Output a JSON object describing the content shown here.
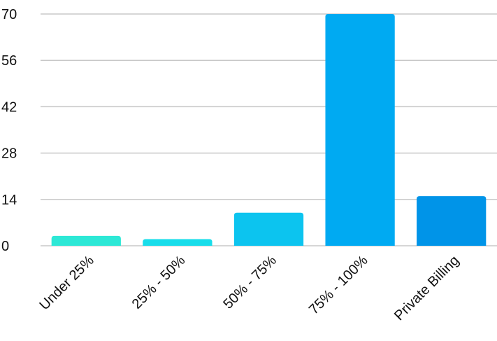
{
  "chart_data": {
    "type": "bar",
    "title": "",
    "xlabel": "",
    "ylabel": "",
    "categories": [
      "Under 25%",
      "25% - 50%",
      "50% - 75%",
      "75% - 100%",
      "Private Billing"
    ],
    "values": [
      3,
      2,
      10,
      70,
      15
    ],
    "colors": [
      "#2de8d6",
      "#18ddea",
      "#0cc4ef",
      "#00aaf2",
      "#0094e8"
    ],
    "ylim": [
      0,
      70
    ],
    "yticks": [
      {
        "value": 0,
        "label": "0"
      },
      {
        "value": 14,
        "label": "14"
      },
      {
        "value": 28,
        "label": "28"
      },
      {
        "value": 42,
        "label": "42"
      },
      {
        "value": 56,
        "label": "56"
      },
      {
        "value": 70,
        "label": "70"
      }
    ],
    "grid": true,
    "legend": "none"
  }
}
